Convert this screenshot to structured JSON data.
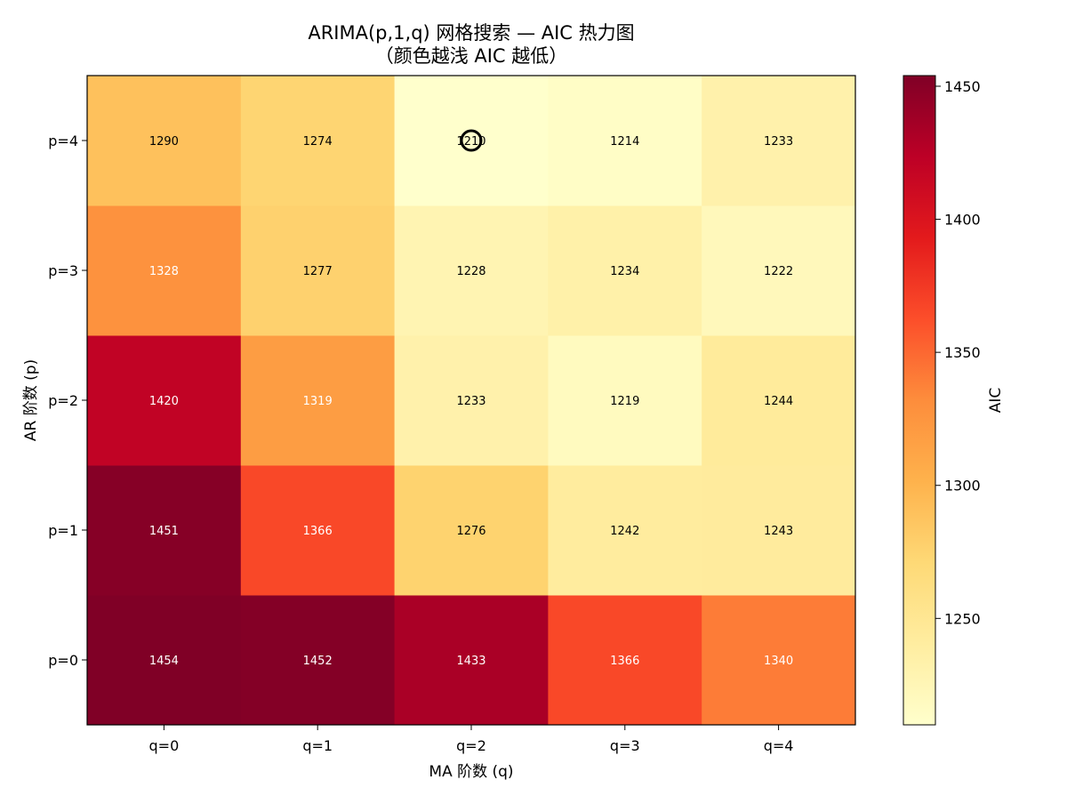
{
  "chart_data": {
    "type": "heatmap",
    "title": "ARIMA(p,1,q) 网格搜索 — AIC 热力图",
    "subtitle": "（颜色越浅 AIC 越低）",
    "xlabel": "MA 阶数 (q)",
    "ylabel": "AR 阶数 (p)",
    "x_categories": [
      "q=0",
      "q=1",
      "q=2",
      "q=3",
      "q=4"
    ],
    "y_categories": [
      "p=0",
      "p=1",
      "p=2",
      "p=3",
      "p=4"
    ],
    "values": [
      [
        1454,
        1452,
        1433,
        1366,
        1340
      ],
      [
        1451,
        1366,
        1276,
        1242,
        1243
      ],
      [
        1420,
        1319,
        1233,
        1219,
        1244
      ],
      [
        1328,
        1277,
        1228,
        1234,
        1222
      ],
      [
        1290,
        1274,
        1210,
        1214,
        1233
      ]
    ],
    "minimum_marker": {
      "p": 4,
      "q": 2
    },
    "colorbar": {
      "label": "AIC",
      "colormap": "YlOrRd",
      "range": [
        1210,
        1454
      ],
      "ticks": [
        "1250",
        "1300",
        "1350",
        "1400",
        "1450"
      ]
    },
    "origin": "lower",
    "grid": false
  }
}
